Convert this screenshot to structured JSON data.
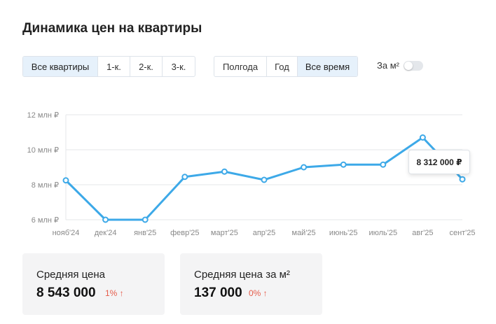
{
  "title": "Динамика цен на квартиры",
  "filters": {
    "room_types": [
      {
        "label": "Все квартиры",
        "active": true
      },
      {
        "label": "1-к.",
        "active": false
      },
      {
        "label": "2-к.",
        "active": false
      },
      {
        "label": "3-к.",
        "active": false
      }
    ],
    "periods": [
      {
        "label": "Полгода",
        "active": false
      },
      {
        "label": "Год",
        "active": false
      },
      {
        "label": "Все время",
        "active": true
      }
    ],
    "per_m2_label": "За м²",
    "per_m2_enabled": false
  },
  "chart_data": {
    "type": "line",
    "x": [
      "нояб'24",
      "дек'24",
      "янв'25",
      "февр'25",
      "март'25",
      "апр'25",
      "май'25",
      "июнь'25",
      "июль'25",
      "авг'25",
      "сент'25"
    ],
    "series": [
      {
        "values": [
          8.25,
          6.0,
          6.0,
          8.45,
          8.75,
          8.28,
          9.0,
          9.15,
          9.15,
          10.7,
          8.312
        ]
      }
    ],
    "y_ticks": [
      {
        "value": 6,
        "label": "6 млн ₽"
      },
      {
        "value": 8,
        "label": "8 млн ₽"
      },
      {
        "value": 10,
        "label": "10 млн ₽"
      },
      {
        "value": 12,
        "label": "12 млн ₽"
      }
    ],
    "ylim": [
      6,
      12
    ],
    "grid": true,
    "line_color": "#3da9e8",
    "tooltip": "8 312 000 ₽"
  },
  "stats": [
    {
      "label": "Средняя цена",
      "value": "8 543 000",
      "change": "1% ↑"
    },
    {
      "label": "Средняя цена за м²",
      "value": "137 000",
      "change": "0% ↑"
    }
  ]
}
